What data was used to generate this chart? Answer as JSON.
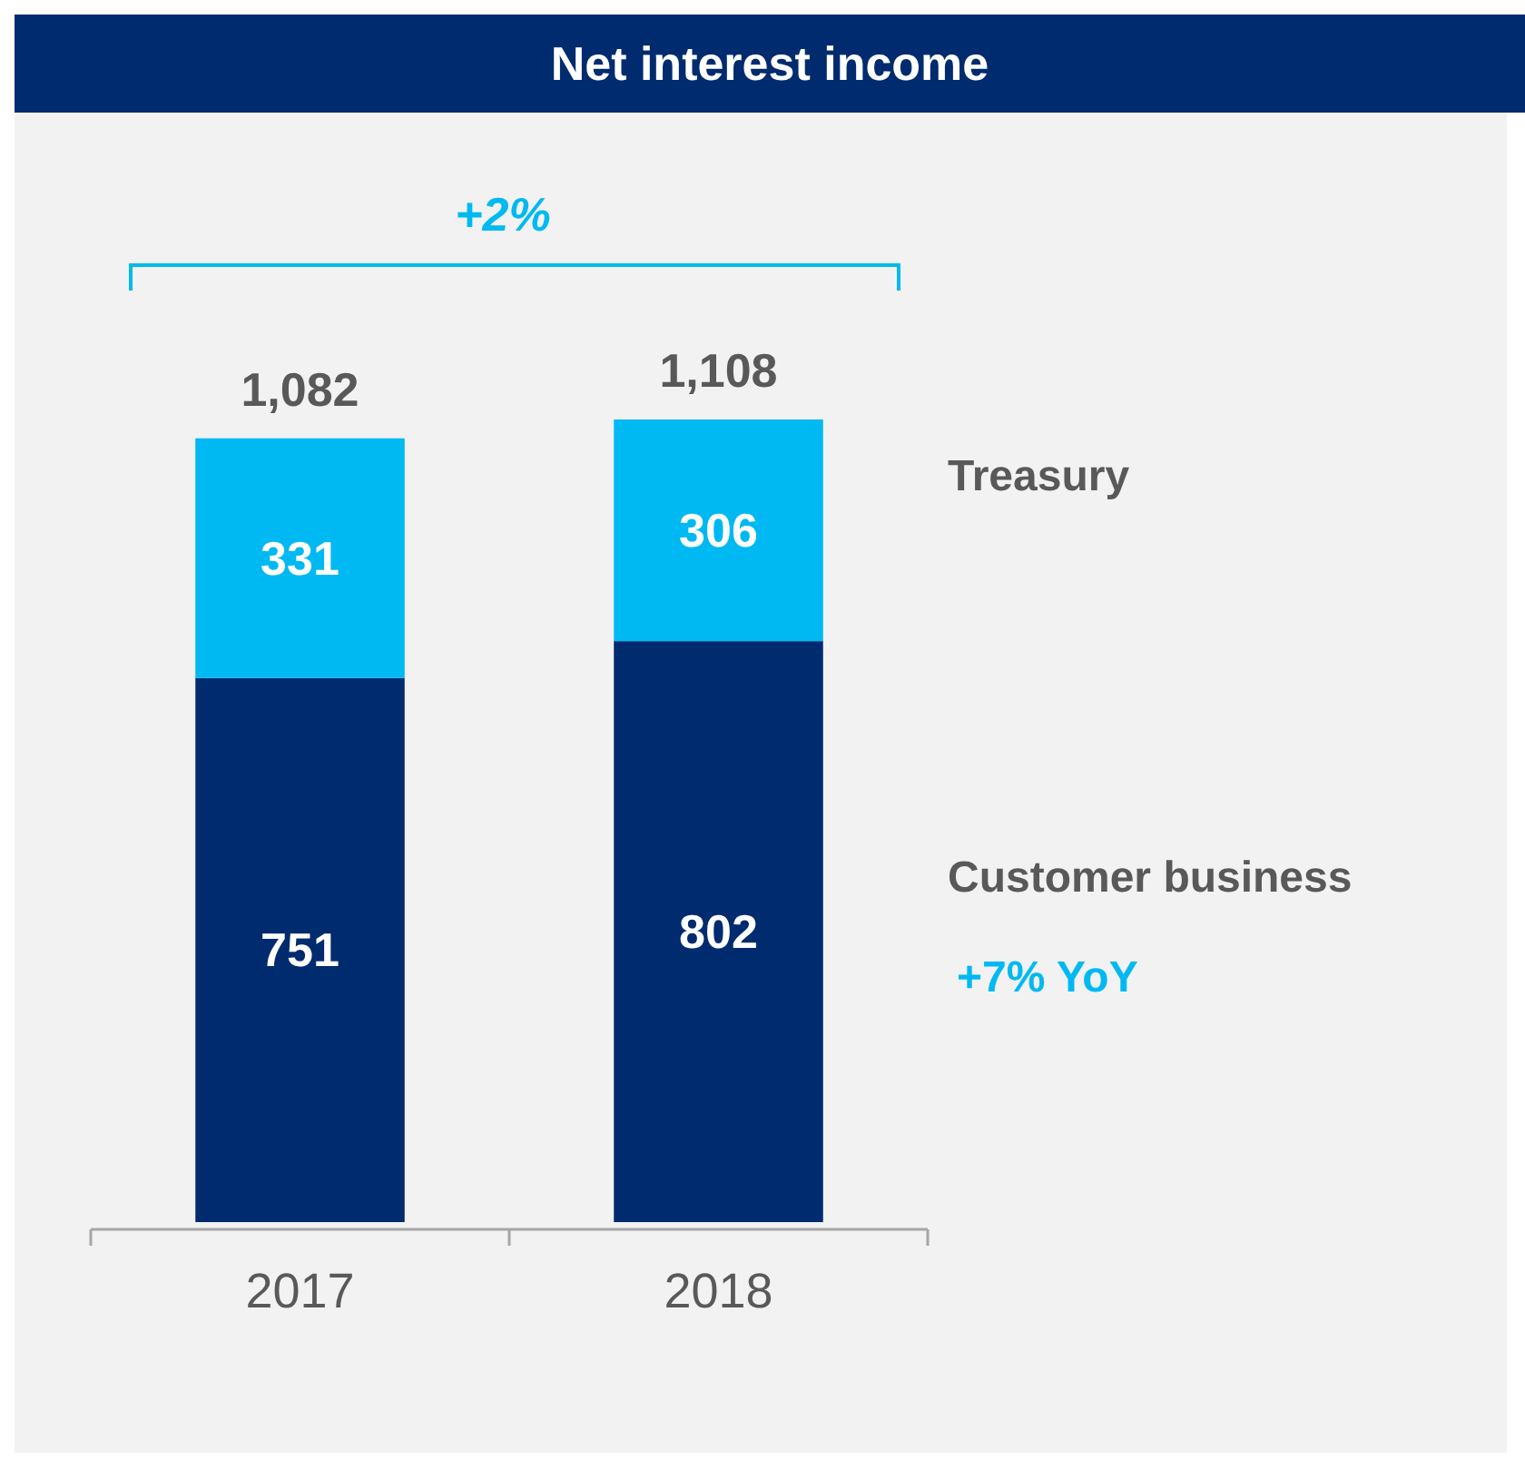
{
  "chart_data": {
    "type": "bar",
    "title": "Net interest income",
    "categories": [
      "2017",
      "2018"
    ],
    "stacked": true,
    "series": [
      {
        "name": "Customer business",
        "color": "#002b6e",
        "values": [
          751,
          802
        ]
      },
      {
        "name": "Treasury",
        "color": "#00b9f2",
        "values": [
          331,
          306
        ]
      }
    ],
    "data_labels": true,
    "totals": [
      "1,082",
      "1,108"
    ],
    "annotations": [
      "+2%",
      "+7% YoY"
    ]
  }
}
